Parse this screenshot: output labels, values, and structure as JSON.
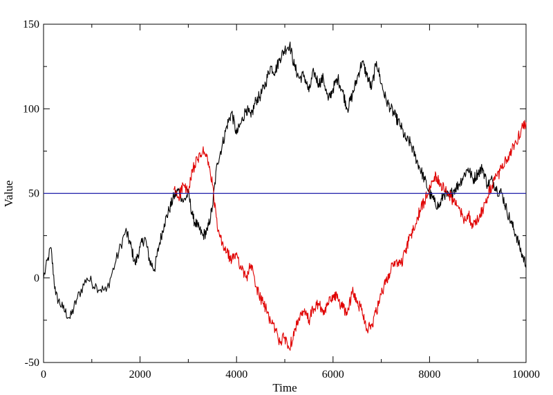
{
  "chart_data": {
    "type": "line",
    "xlabel": "Time",
    "ylabel": "Value",
    "xlim": [
      0,
      10000
    ],
    "ylim": [
      -50,
      150
    ],
    "x_ticks": [
      0,
      2000,
      4000,
      6000,
      8000,
      10000
    ],
    "y_ticks": [
      -50,
      0,
      50,
      100,
      150
    ],
    "x_tick_labels": [
      "0",
      "2000",
      "4000",
      "6000",
      "8000",
      "10000"
    ],
    "y_tick_labels": [
      "-50",
      "0",
      "50",
      "100",
      "150"
    ],
    "grid": false,
    "legend": "none",
    "reference_line": {
      "y": 50,
      "color": "#1a1aa8"
    },
    "series": [
      {
        "color": "#000000",
        "x": [
          0,
          150,
          250,
          400,
          550,
          700,
          900,
          1100,
          1300,
          1500,
          1700,
          1800,
          1900,
          2000,
          2100,
          2200,
          2300,
          2400,
          2500,
          2600,
          2700,
          2800,
          2900,
          3000,
          3100,
          3200,
          3300,
          3400,
          3500,
          3600,
          3700,
          3800,
          3900,
          4000,
          4100,
          4200,
          4300,
          4400,
          4500,
          4600,
          4700,
          4800,
          4900,
          5000,
          5100,
          5200,
          5300,
          5400,
          5500,
          5600,
          5700,
          5800,
          5900,
          6000,
          6100,
          6200,
          6300,
          6400,
          6500,
          6600,
          6700,
          6800,
          6900,
          7000,
          7100,
          7200,
          7300,
          7400,
          7500,
          7600,
          7700,
          7800,
          7900,
          8000,
          8100,
          8200,
          8300,
          8400,
          8500,
          8600,
          8700,
          8800,
          8900,
          9000,
          9100,
          9200,
          9300,
          9400,
          9500,
          9600,
          9700,
          9800,
          9900,
          10000
        ],
        "y": [
          0,
          18,
          -10,
          -18,
          -24,
          -12,
          0,
          -5,
          -8,
          10,
          28,
          20,
          8,
          18,
          24,
          10,
          5,
          20,
          32,
          40,
          48,
          52,
          45,
          50,
          35,
          30,
          25,
          28,
          42,
          68,
          78,
          90,
          98,
          85,
          92,
          100,
          95,
          105,
          108,
          115,
          125,
          122,
          130,
          135,
          138,
          125,
          118,
          120,
          110,
          122,
          115,
          118,
          105,
          112,
          118,
          110,
          100,
          108,
          118,
          128,
          120,
          112,
          128,
          115,
          105,
          100,
          95,
          90,
          82,
          80,
          72,
          65,
          58,
          50,
          45,
          42,
          50,
          48,
          52,
          55,
          60,
          65,
          58,
          62,
          65,
          55,
          58,
          52,
          50,
          40,
          32,
          25,
          15,
          8
        ]
      },
      {
        "color": "#e00000",
        "x": [
          2700,
          2800,
          2900,
          3000,
          3100,
          3200,
          3300,
          3400,
          3500,
          3600,
          3700,
          3800,
          3900,
          4000,
          4100,
          4200,
          4300,
          4400,
          4500,
          4600,
          4700,
          4800,
          4900,
          5000,
          5100,
          5200,
          5300,
          5400,
          5500,
          5600,
          5700,
          5800,
          5900,
          6000,
          6100,
          6200,
          6300,
          6400,
          6500,
          6600,
          6700,
          6800,
          6900,
          7000,
          7100,
          7200,
          7300,
          7400,
          7500,
          7600,
          7700,
          7800,
          7900,
          8000,
          8100,
          8200,
          8300,
          8400,
          8500,
          8600,
          8700,
          8800,
          8900,
          9000,
          9100,
          9200,
          9300,
          9400,
          9500,
          9600,
          9700,
          9800,
          9900,
          10000
        ],
        "y": [
          52,
          48,
          55,
          50,
          65,
          70,
          75,
          70,
          55,
          30,
          20,
          15,
          10,
          15,
          5,
          0,
          8,
          -5,
          -12,
          -18,
          -25,
          -30,
          -38,
          -35,
          -42,
          -30,
          -25,
          -20,
          -25,
          -18,
          -15,
          -22,
          -15,
          -10,
          -12,
          -18,
          -20,
          -8,
          -15,
          -18,
          -30,
          -28,
          -20,
          -10,
          -2,
          5,
          10,
          8,
          15,
          25,
          30,
          40,
          45,
          55,
          60,
          58,
          52,
          50,
          45,
          42,
          35,
          38,
          30,
          35,
          40,
          48,
          55,
          60,
          65,
          70,
          75,
          80,
          88,
          92
        ]
      }
    ]
  }
}
